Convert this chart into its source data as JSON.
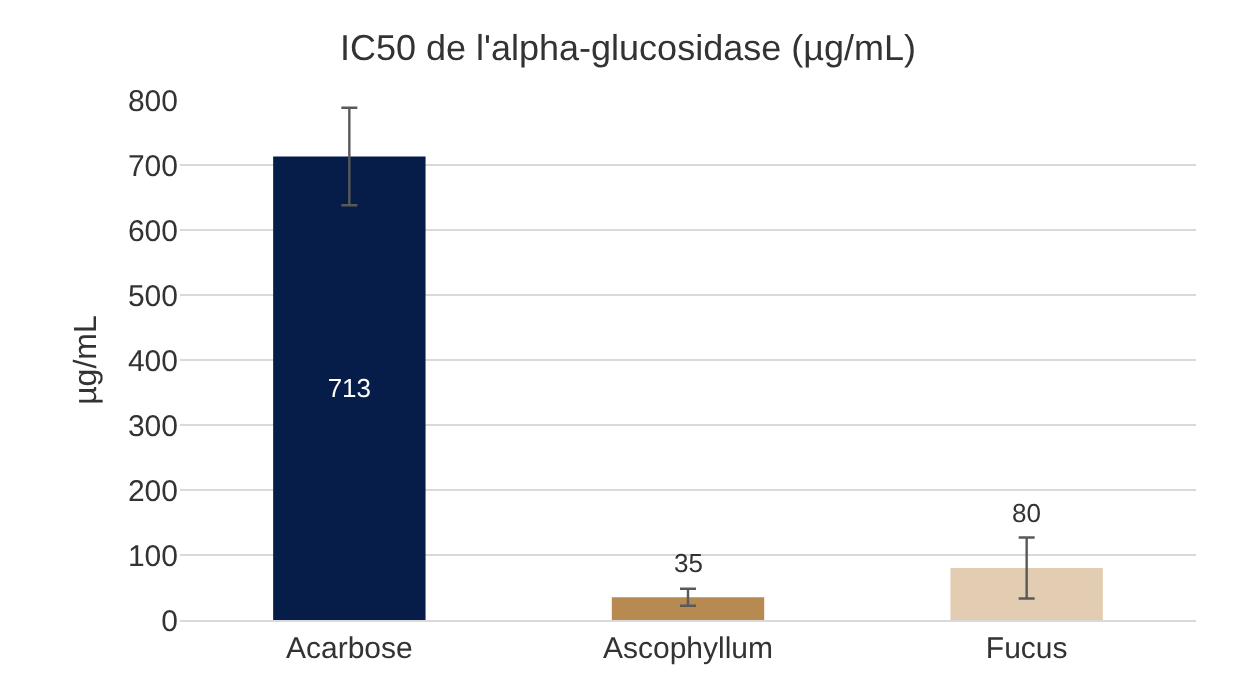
{
  "chart_data": {
    "type": "bar",
    "title": "IC50 de l'alpha-glucosidase (µg/mL)",
    "ylabel": "µg/mL",
    "categories": [
      "Acarbose",
      "Ascophyllum",
      "Fucus"
    ],
    "values": [
      713,
      35,
      80
    ],
    "colors": [
      "#071d49",
      "#b78a52",
      "#e2cdb2"
    ],
    "errors": [
      75,
      13,
      47
    ],
    "ylim": [
      0,
      800
    ],
    "yticks": [
      0,
      100,
      200,
      300,
      400,
      500,
      600,
      700,
      800
    ],
    "grid": "y",
    "data_labels": true
  }
}
